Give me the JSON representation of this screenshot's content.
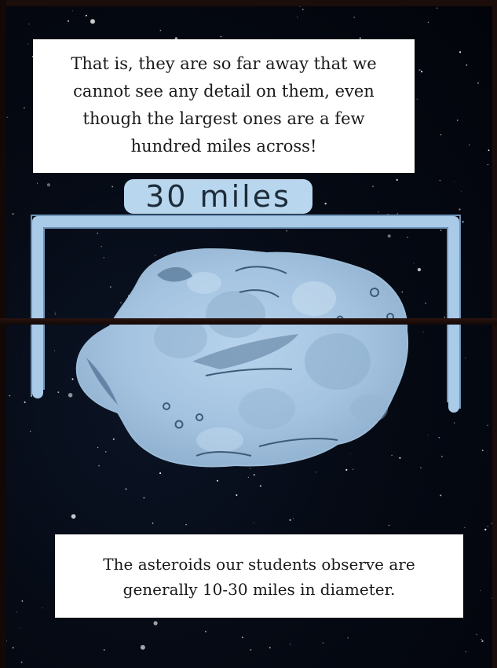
{
  "captions": {
    "top_lines": [
      "That is, they are so far away that we",
      "cannot see any detail on them, even",
      "though the largest ones are a few",
      "hundred miles across!"
    ],
    "bottom_lines": [
      "The asteroids our students observe are",
      "generally 10-30 miles in diameter."
    ]
  },
  "scale": {
    "label": "30 miles"
  },
  "colors": {
    "space": "#050a14",
    "asteroid": "#a9c9e6",
    "asteroid_shadow": "#7f9fbc",
    "scale_bar": "#a9cbe8",
    "caption_bg": "#ffffff"
  },
  "icons": {
    "asteroid": "asteroid-illustration",
    "scale_bracket": "scale-bracket-icon"
  }
}
